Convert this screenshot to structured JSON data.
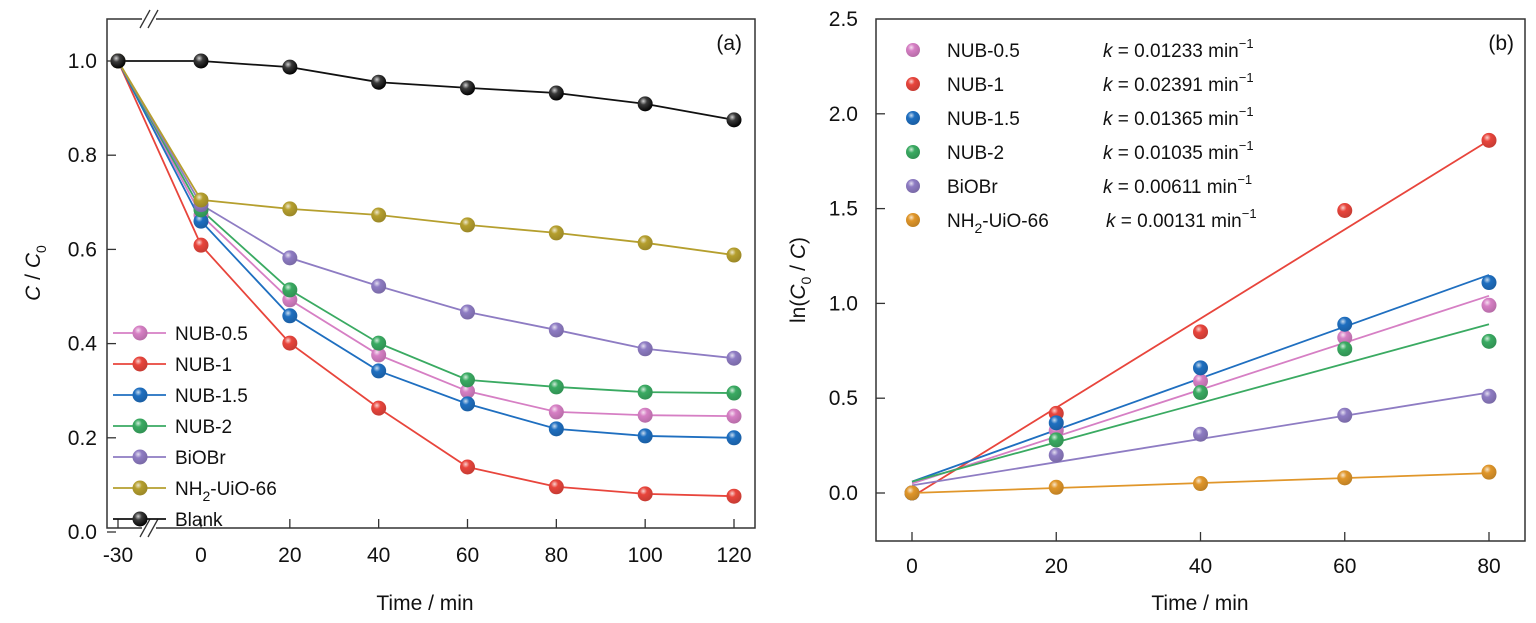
{
  "chart_data": [
    {
      "type": "line",
      "panel_label": "(a)",
      "xlabel": "Time / min",
      "ylabel_parts": [
        "C",
        " / ",
        "C",
        "0"
      ],
      "ylabel": "C / C0",
      "xlim": [
        -30,
        120
      ],
      "ylim": [
        0.0,
        1.0
      ],
      "x_break": "between -30 and 0",
      "x_ticks": [
        -30,
        0,
        20,
        40,
        60,
        80,
        100,
        120
      ],
      "x_tick_labels": [
        "-30",
        "0",
        "20",
        "40",
        "60",
        "80",
        "100",
        "120"
      ],
      "y_ticks": [
        0.0,
        0.2,
        0.4,
        0.6,
        0.8,
        1.0
      ],
      "y_tick_labels": [
        "0.0",
        "0.2",
        "0.4",
        "0.6",
        "0.8",
        "1.0"
      ],
      "grid": false,
      "legend_position": "bottom-left",
      "x": [
        -30,
        0,
        20,
        40,
        60,
        80,
        100,
        120
      ],
      "series": [
        {
          "name": "NUB-0.5",
          "label_main": "NUB-0.5",
          "label_sub": "",
          "label_tail": "",
          "color": "#d67fc4",
          "values": [
            1.0,
            0.673,
            0.493,
            0.376,
            0.299,
            0.255,
            0.248,
            0.246
          ]
        },
        {
          "name": "NUB-1",
          "label_main": "NUB-1",
          "label_sub": "",
          "label_tail": "",
          "color": "#e8453c",
          "values": [
            1.0,
            0.609,
            0.401,
            0.263,
            0.138,
            0.096,
            0.081,
            0.076
          ]
        },
        {
          "name": "NUB-1.5",
          "label_main": "NUB-1.5",
          "label_sub": "",
          "label_tail": "",
          "color": "#1f6fc0",
          "values": [
            1.0,
            0.66,
            0.459,
            0.342,
            0.272,
            0.219,
            0.204,
            0.2
          ]
        },
        {
          "name": "NUB-2",
          "label_main": "NUB-2",
          "label_sub": "",
          "label_tail": "",
          "color": "#3aaa62",
          "values": [
            1.0,
            0.684,
            0.514,
            0.401,
            0.323,
            0.308,
            0.297,
            0.295
          ]
        },
        {
          "name": "BiOBr",
          "label_main": "BiOBr",
          "label_sub": "",
          "label_tail": "",
          "color": "#8e7cc3",
          "values": [
            1.0,
            0.695,
            0.582,
            0.522,
            0.467,
            0.429,
            0.389,
            0.369
          ]
        },
        {
          "name": "NH2-UiO-66",
          "label_main": "NH",
          "label_sub": "2",
          "label_tail": "-UiO-66",
          "color": "#b59f2e",
          "values": [
            1.0,
            0.705,
            0.686,
            0.673,
            0.652,
            0.635,
            0.614,
            0.588
          ]
        },
        {
          "name": "Blank",
          "label_main": "Blank",
          "label_sub": "",
          "label_tail": "",
          "color": "#111111",
          "values": [
            1.0,
            1.0,
            0.987,
            0.955,
            0.943,
            0.932,
            0.909,
            0.875
          ]
        }
      ]
    },
    {
      "type": "scatter",
      "panel_label": "(b)",
      "xlabel": "Time / min",
      "ylabel": "ln(C0 / C)",
      "ylabel_parts": [
        "ln(",
        "C",
        "0",
        " / ",
        "C",
        ")"
      ],
      "xlim": [
        -6,
        88
      ],
      "ylim": [
        -0.25,
        2.5
      ],
      "x_ticks": [
        0,
        20,
        40,
        60,
        80
      ],
      "x_tick_labels": [
        "0",
        "20",
        "40",
        "60",
        "80"
      ],
      "y_ticks": [
        0.0,
        0.5,
        1.0,
        1.5,
        2.0,
        2.5
      ],
      "y_tick_labels": [
        "0.0",
        "0.5",
        "1.0",
        "1.5",
        "2.0",
        "2.5"
      ],
      "grid": false,
      "legend_position": "top-left",
      "x": [
        0,
        20,
        40,
        60,
        80
      ],
      "k_prefix": "k",
      "k_equals": " = ",
      "k_unit": " min",
      "k_unit_sup": "−1",
      "series": [
        {
          "name": "NUB-0.5",
          "label_main": "NUB-0.5",
          "label_sub": "",
          "label_tail": "",
          "k": "0.01233",
          "color": "#d67fc4",
          "values": [
            0.0,
            0.33,
            0.59,
            0.82,
            0.99
          ],
          "fit": [
            0.05,
            1.04
          ]
        },
        {
          "name": "NUB-1",
          "label_main": "NUB-1",
          "label_sub": "",
          "label_tail": "",
          "k": "0.02391",
          "color": "#e8453c",
          "values": [
            0.0,
            0.42,
            0.85,
            1.49,
            1.86
          ],
          "fit": [
            -0.02,
            1.86
          ]
        },
        {
          "name": "NUB-1.5",
          "label_main": "NUB-1.5",
          "label_sub": "",
          "label_tail": "",
          "k": "0.01365",
          "color": "#1f6fc0",
          "values": [
            0.0,
            0.37,
            0.66,
            0.89,
            1.11
          ],
          "fit": [
            0.06,
            1.15
          ]
        },
        {
          "name": "NUB-2",
          "label_main": "NUB-2",
          "label_sub": "",
          "label_tail": "",
          "k": "0.01035",
          "color": "#3aaa62",
          "values": [
            0.0,
            0.28,
            0.53,
            0.76,
            0.8
          ],
          "fit": [
            0.06,
            0.89
          ]
        },
        {
          "name": "BiOBr",
          "label_main": "BiOBr",
          "label_sub": "",
          "label_tail": "",
          "k": "0.00611",
          "color": "#8e7cc3",
          "values": [
            0.0,
            0.2,
            0.31,
            0.41,
            0.51
          ],
          "fit": [
            0.04,
            0.53
          ]
        },
        {
          "name": "NH2-UiO-66",
          "label_main": "NH",
          "label_sub": "2",
          "label_tail": "-UiO-66",
          "k": "0.00131",
          "color": "#e0962a",
          "values": [
            0.0,
            0.03,
            0.05,
            0.08,
            0.11
          ],
          "fit": [
            0.0,
            0.105
          ]
        }
      ]
    }
  ]
}
